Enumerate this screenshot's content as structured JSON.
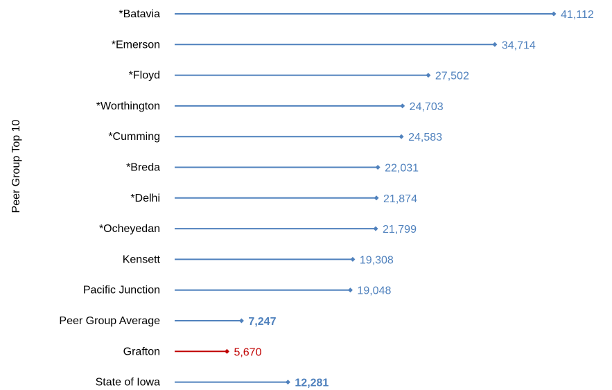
{
  "chart_data": {
    "type": "bar",
    "ylabel": "Peer Group Top 10",
    "categories": [
      "*Batavia",
      "*Emerson",
      "*Floyd",
      "*Worthington",
      "*Cumming",
      "*Breda",
      "*Delhi",
      "*Ocheyedan",
      "Kensett",
      "Pacific Junction",
      "Peer Group Average",
      "Grafton",
      "State of Iowa"
    ],
    "values": [
      41112,
      34714,
      27502,
      24703,
      24583,
      22031,
      21874,
      21799,
      19308,
      19048,
      7247,
      5670,
      12281
    ],
    "value_labels": [
      "41,112",
      "34,714",
      "27,502",
      "24,703",
      "24,583",
      "22,031",
      "21,874",
      "21,799",
      "19,308",
      "19,048",
      "7,247",
      "5,670",
      "12,281"
    ],
    "bold_labels": [
      false,
      false,
      false,
      false,
      false,
      false,
      false,
      false,
      false,
      false,
      true,
      false,
      true
    ],
    "series_colors": [
      "#4F81BD",
      "#4F81BD",
      "#4F81BD",
      "#4F81BD",
      "#4F81BD",
      "#4F81BD",
      "#4F81BD",
      "#4F81BD",
      "#4F81BD",
      "#4F81BD",
      "#4F81BD",
      "#C00000",
      "#4F81BD"
    ],
    "grid": false,
    "legend": "none"
  }
}
